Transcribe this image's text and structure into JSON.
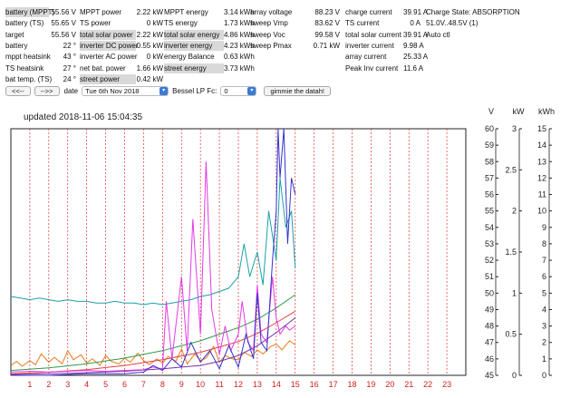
{
  "stats": [
    {
      "label": "battery (MPPT)",
      "value": "55.56 V",
      "hl": true
    },
    {
      "label": "battery (TS)",
      "value": "55.65 V"
    },
    {
      "label": "target",
      "value": "55.56 V"
    },
    {
      "label": "battery",
      "value": "22 °"
    },
    {
      "label": "mppt heatsink",
      "value": "43 °"
    },
    {
      "label": "TS heatsink",
      "value": "27 °"
    },
    {
      "label": "bat temp. (TS)",
      "value": "24 °"
    },
    {
      "label": "MPPT power",
      "value": "2.22 kW"
    },
    {
      "label": "TS power",
      "value": "0 kW"
    },
    {
      "label": "total solar power",
      "value": "2.22 kW",
      "hl": true
    },
    {
      "label": "inverter DC power",
      "value": "0.55 kW",
      "hl": true
    },
    {
      "label": "inverter AC power",
      "value": "0 kW"
    },
    {
      "label": "net bat. power",
      "value": "1.66 kW"
    },
    {
      "label": "street power",
      "value": "0.42 kW",
      "hl": true
    },
    {
      "label": "MPPT energy",
      "value": "3.14 kWh"
    },
    {
      "label": "TS energy",
      "value": "1.73 kWh"
    },
    {
      "label": "total solar energy",
      "value": "4.86 kWh",
      "hl": true
    },
    {
      "label": "inverter energy",
      "value": "4.23 kWh",
      "hl": true
    },
    {
      "label": "energy Balance",
      "value": "0.63 kWh"
    },
    {
      "label": "street energy",
      "value": "3.73 kWh",
      "hl": true
    },
    {
      "label": "array voltage",
      "value": "88.23 V"
    },
    {
      "label": "sweep Vmp",
      "value": "83.62 V"
    },
    {
      "label": "sweep Voc",
      "value": "99.58 V"
    },
    {
      "label": "sweep Pmax",
      "value": "0.71 kW"
    },
    {
      "label": "charge current",
      "value": "39.91 A"
    },
    {
      "label": "TS current",
      "value": "0 A"
    },
    {
      "label": "total solar current",
      "value": "39.91 A"
    },
    {
      "label": "inverter current",
      "value": "9.98 A"
    },
    {
      "label": "array current",
      "value": "25.33 A"
    },
    {
      "label": "Peak Inv current",
      "value": "11.6 A"
    }
  ],
  "status": [
    "Charge State: ABSORPTION",
    "51.0V..48.5V (1)",
    "Auto ctl"
  ],
  "controls": {
    "prev": "<<--",
    "next": "-->>",
    "date_label": "date",
    "date_value": "Tue 6th Nov 2018",
    "bessel_label": "Bessel LP Fc:",
    "bessel_value": "0",
    "submit": "gimmie the datah!"
  },
  "chart_data": {
    "type": "line",
    "title": "updated 2018-11-06 15:04:35",
    "x_ticks": [
      1,
      2,
      3,
      4,
      5,
      6,
      7,
      8,
      9,
      10,
      11,
      12,
      13,
      14,
      15,
      16,
      17,
      18,
      19,
      20,
      21,
      22,
      23
    ],
    "xlim": [
      0,
      24
    ],
    "axes": [
      {
        "unit": "V",
        "range": [
          45,
          60
        ],
        "ticks": [
          45,
          46,
          47,
          48,
          49,
          50,
          51,
          52,
          53,
          54,
          55,
          56,
          57,
          58,
          59,
          60
        ]
      },
      {
        "unit": "kW",
        "range": [
          0,
          3
        ],
        "ticks": [
          "0",
          "0.5",
          "1",
          "1.5",
          "2",
          "2.5",
          "3"
        ]
      },
      {
        "unit": "kWh",
        "range": [
          0,
          15
        ],
        "ticks": [
          0,
          1,
          2,
          3,
          4,
          5,
          6,
          7,
          8,
          9,
          10,
          11,
          12,
          13,
          14,
          15
        ]
      }
    ],
    "series": [
      {
        "color": "#1aa0a8",
        "axis": "V",
        "x": [
          0,
          0.5,
          1,
          1.5,
          2,
          2.5,
          3,
          3.5,
          4,
          4.5,
          5,
          5.5,
          6,
          6.5,
          7,
          7.5,
          8,
          8.5,
          9,
          9.5,
          10,
          10.5,
          11,
          11.5,
          12,
          12.3,
          12.6,
          13,
          13.3,
          13.6,
          14,
          14.2,
          14.5,
          14.8,
          15
        ],
        "y": [
          49.8,
          49.7,
          49.6,
          49.7,
          49.6,
          49.5,
          49.6,
          49.5,
          49.5,
          49.4,
          49.4,
          49.5,
          49.4,
          49.4,
          49.3,
          49.4,
          49.3,
          49.4,
          49.5,
          49.6,
          49.8,
          49.9,
          50.1,
          50.3,
          51,
          53,
          51,
          52.5,
          50.5,
          55,
          52,
          57,
          54,
          55,
          51.5
        ]
      },
      {
        "color": "#e87a1c",
        "axis": "kW",
        "x": [
          0,
          0.3,
          0.6,
          1,
          1.3,
          1.6,
          2,
          2.3,
          2.7,
          3,
          3.3,
          3.7,
          4,
          4.3,
          4.7,
          5,
          5.3,
          5.7,
          6,
          6.3,
          6.7,
          7,
          7.3,
          7.7,
          8,
          8.3,
          8.7,
          9,
          9.3,
          9.7,
          10,
          10.3,
          10.7,
          11,
          11.3,
          11.7,
          12,
          12.3,
          12.7,
          13,
          13.3,
          13.7,
          14,
          14.3,
          14.7,
          15
        ],
        "y": [
          0.12,
          0.17,
          0.11,
          0.18,
          0.13,
          0.26,
          0.16,
          0.22,
          0.14,
          0.3,
          0.19,
          0.25,
          0.15,
          0.2,
          0.12,
          0.24,
          0.17,
          0.14,
          0.21,
          0.16,
          0.27,
          0.18,
          0.13,
          0.2,
          0.15,
          0.23,
          0.17,
          0.32,
          0.14,
          0.26,
          0.18,
          0.21,
          0.35,
          0.16,
          0.24,
          0.2,
          0.19,
          0.28,
          0.23,
          0.31,
          0.26,
          0.35,
          0.38,
          0.31,
          0.42,
          0.37
        ]
      },
      {
        "color": "#2a9d49",
        "axis": "kWh",
        "x": [
          0,
          2,
          4,
          6,
          8,
          10,
          12,
          13,
          14,
          15
        ],
        "y": [
          0.3,
          0.45,
          0.7,
          1.05,
          1.5,
          2.1,
          2.9,
          3.4,
          4.1,
          4.9
        ]
      },
      {
        "color": "#e04040",
        "axis": "kWh",
        "x": [
          0,
          2,
          4,
          6,
          8,
          10,
          12,
          13,
          14,
          15
        ],
        "y": [
          0.1,
          0.2,
          0.35,
          0.6,
          0.95,
          1.4,
          2.05,
          2.55,
          3.2,
          3.9
        ]
      },
      {
        "color": "#7b2fa8",
        "axis": "kWh",
        "x": [
          0,
          3,
          6,
          8,
          10,
          11,
          12,
          13,
          14,
          15
        ],
        "y": [
          0.05,
          0.12,
          0.25,
          0.4,
          0.6,
          0.85,
          1.2,
          1.8,
          2.6,
          3.5
        ]
      },
      {
        "color": "#e23ae6",
        "axis": "kW",
        "x": [
          0,
          1,
          2,
          3,
          4,
          5,
          6,
          7,
          7.5,
          8,
          8.2,
          8.5,
          9,
          9.3,
          9.6,
          10,
          10.3,
          10.6,
          11,
          11.3,
          11.6,
          12,
          12.2,
          12.5,
          12.8,
          13,
          13.2,
          13.5,
          13.8,
          14,
          14.2,
          14.5,
          14.7,
          15
        ],
        "y": [
          0.04,
          0.05,
          0.04,
          0.05,
          0.06,
          0.05,
          0.06,
          0.07,
          0.1,
          0.08,
          0.9,
          0.2,
          1.2,
          0.3,
          1.9,
          0.5,
          2.6,
          0.8,
          0.25,
          0.6,
          0.3,
          0.5,
          0.9,
          0.4,
          0.3,
          1.1,
          0.5,
          0.4,
          1.2,
          0.7,
          0.5,
          0.6,
          0.55,
          0.6
        ]
      },
      {
        "color": "#3333cc",
        "axis": "V",
        "x": [
          0,
          2,
          4,
          6,
          7,
          7.5,
          8,
          8.5,
          9,
          9.5,
          10,
          10.5,
          11,
          11.5,
          12,
          12.4,
          12.8,
          13,
          13.2,
          13.5,
          13.8,
          14,
          14.1,
          14.2,
          14.4,
          14.6,
          14.8,
          15
        ],
        "y": [
          45,
          45,
          45.1,
          45.1,
          45.2,
          45.6,
          45.3,
          46,
          45.5,
          47,
          45.8,
          46.5,
          45.4,
          46.8,
          45.5,
          47.5,
          46,
          50,
          47,
          46.5,
          52,
          55,
          60,
          57,
          60,
          53,
          57,
          56
        ]
      }
    ]
  }
}
